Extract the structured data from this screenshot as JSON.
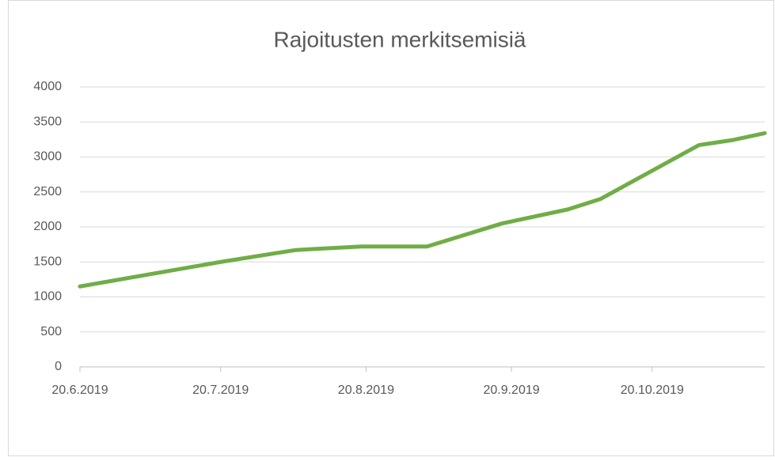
{
  "chart_data": {
    "type": "line",
    "title": "Rajoitusten merkitsemisiä",
    "x": [
      "2019-06-20",
      "2019-07-20",
      "2019-08-05",
      "2019-08-19",
      "2019-09-02",
      "2019-09-18",
      "2019-10-02",
      "2019-10-09",
      "2019-10-30",
      "2019-11-06",
      "2019-11-13"
    ],
    "series": [
      {
        "color": "#70ad47",
        "values": [
          1150,
          1500,
          1670,
          1720,
          1720,
          2050,
          2250,
          2400,
          3170,
          3240,
          3340
        ]
      }
    ],
    "xlim": [
      "2019-06-20",
      "2019-11-13"
    ],
    "xticks": [
      {
        "value": "2019-06-20",
        "label": "20.6.2019"
      },
      {
        "value": "2019-07-20",
        "label": "20.7.2019"
      },
      {
        "value": "2019-08-20",
        "label": "20.8.2019"
      },
      {
        "value": "2019-09-20",
        "label": "20.9.2019"
      },
      {
        "value": "2019-10-20",
        "label": "20.10.2019"
      }
    ],
    "ylim": [
      0,
      4000
    ],
    "yticks": [
      0,
      500,
      1000,
      1500,
      2000,
      2500,
      3000,
      3500,
      4000
    ],
    "grid": true
  }
}
